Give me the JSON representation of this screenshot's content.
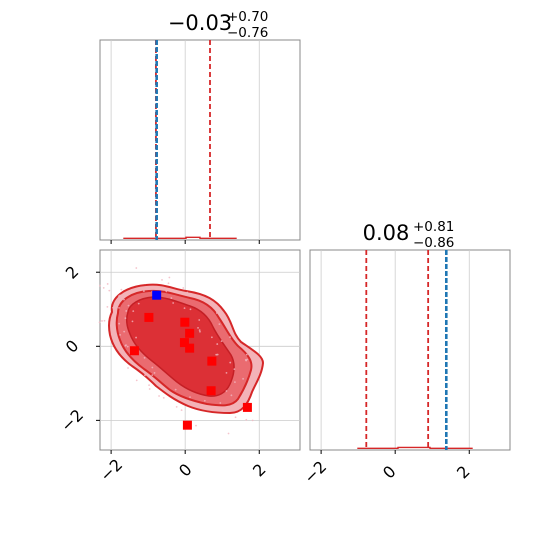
{
  "chart_data": {
    "type": "corner",
    "title_left": {
      "main": "−0.03",
      "sup": "+0.70",
      "sub": "−0.76"
    },
    "title_right": {
      "main": "0.08",
      "sup": "+0.81",
      "sub": "−0.86"
    },
    "axes": {
      "x_ticks": [
        -2,
        0,
        2
      ],
      "x_tick_labels": [
        "−2",
        "0",
        "2"
      ],
      "y_ticks": [
        2,
        0,
        -2
      ],
      "y_tick_labels": [
        "2",
        "0",
        "−2"
      ],
      "x_range": [
        -2.3,
        3.1
      ],
      "y_range": [
        -2.8,
        2.6
      ],
      "grid": true
    },
    "colors": {
      "posterior": "#d62728",
      "truth": "#1f77b4",
      "blue_point": "#0000ff",
      "red_point": "#ff0000",
      "grid": "#cccccc",
      "spine": "#888888"
    },
    "marginal_x": {
      "quantile_lines": [
        -0.79,
        0.67
      ],
      "truth_line": -0.77
    },
    "marginal_y": {
      "quantile_lines": [
        -0.78,
        0.89
      ],
      "truth_line": 1.38
    },
    "blue_point": {
      "x": -0.77,
      "y": 1.38
    },
    "red_points": [
      {
        "x": -0.98,
        "y": 0.78
      },
      {
        "x": -1.37,
        "y": -0.12
      },
      {
        "x": -0.01,
        "y": 0.65
      },
      {
        "x": 0.12,
        "y": 0.35
      },
      {
        "x": -0.02,
        "y": 0.1
      },
      {
        "x": 0.12,
        "y": -0.05
      },
      {
        "x": 0.72,
        "y": -0.4
      },
      {
        "x": 0.7,
        "y": -1.2
      },
      {
        "x": 1.68,
        "y": -1.65
      },
      {
        "x": 0.06,
        "y": -2.13
      }
    ]
  }
}
